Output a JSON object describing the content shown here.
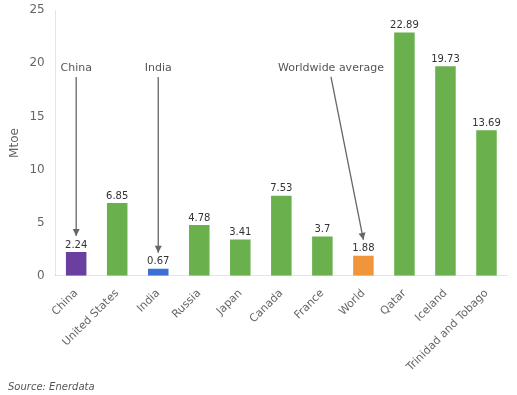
{
  "chart_data": {
    "type": "bar",
    "categories": [
      "China",
      "United States",
      "India",
      "Russia",
      "Japan",
      "Canada",
      "France",
      "World",
      "Qatar",
      "Iceland",
      "Trinidad and Tobago"
    ],
    "values": [
      2.24,
      6.85,
      0.67,
      4.78,
      3.41,
      7.53,
      3.7,
      1.88,
      22.89,
      19.73,
      13.69
    ],
    "colors": [
      "#6b3fa0",
      "#6ab04c",
      "#3b6fd4",
      "#6ab04c",
      "#6ab04c",
      "#6ab04c",
      "#6ab04c",
      "#f0953a",
      "#6ab04c",
      "#6ab04c",
      "#6ab04c"
    ],
    "ylabel": "Mtoe",
    "ylim": [
      0,
      25
    ],
    "yticks": [
      0,
      5,
      10,
      15,
      20,
      25
    ],
    "grid": false,
    "data_labels": true,
    "annotations": [
      {
        "text": "China",
        "target": "China"
      },
      {
        "text": "India",
        "target": "India"
      },
      {
        "text": "Worldwide average",
        "target": "World"
      }
    ],
    "source": "Source: Enerdata"
  }
}
